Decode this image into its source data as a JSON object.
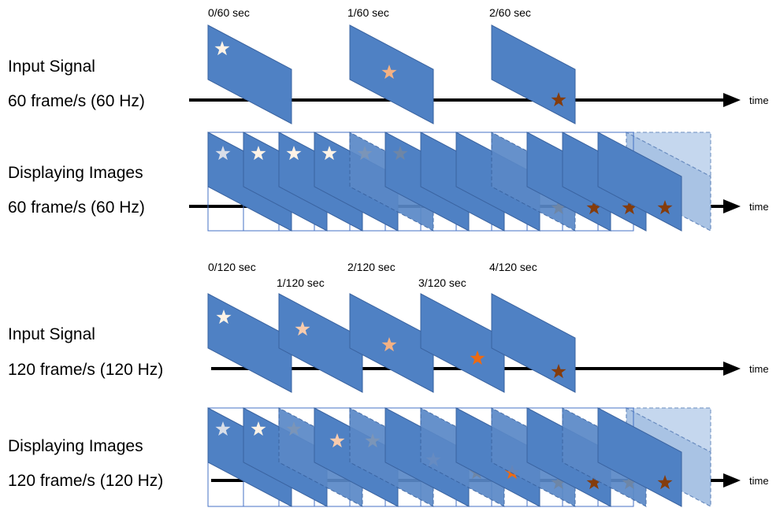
{
  "sections": [
    {
      "input_title": "Input Signal",
      "input_rate": "60 frame/s (60 Hz)",
      "display_title": "Displaying Images",
      "display_rate": "60 frame/s (60 Hz)",
      "time_label": "time",
      "frames": [
        {
          "label": "0/60 sec",
          "star_color": "#FFF3E6"
        },
        {
          "label": "1/60 sec",
          "star_color": "#F4B183"
        },
        {
          "label": "2/60 sec",
          "star_color": "#843C0C"
        }
      ]
    },
    {
      "input_title": "Input Signal",
      "input_rate": "120 frame/s (120 Hz)",
      "display_title": "Displaying Images",
      "display_rate": "120 frame/s (120 Hz)",
      "time_label": "time",
      "frames": [
        {
          "label": "0/120 sec",
          "star_color": "#FFF3E6"
        },
        {
          "label": "1/120 sec",
          "star_color": "#F8CBAD"
        },
        {
          "label": "2/120 sec",
          "star_color": "#F4B183"
        },
        {
          "label": "3/120 sec",
          "star_color": "#ED6A12"
        },
        {
          "label": "4/120 sec",
          "star_color": "#843C0C"
        }
      ]
    }
  ],
  "colors": {
    "panel_fill": "#4F81C4",
    "panel_stroke": "#3A63A0",
    "ghost_fill": "#A9C3E4",
    "ghost_star": "#6E86A6",
    "arrow": "#000000"
  }
}
